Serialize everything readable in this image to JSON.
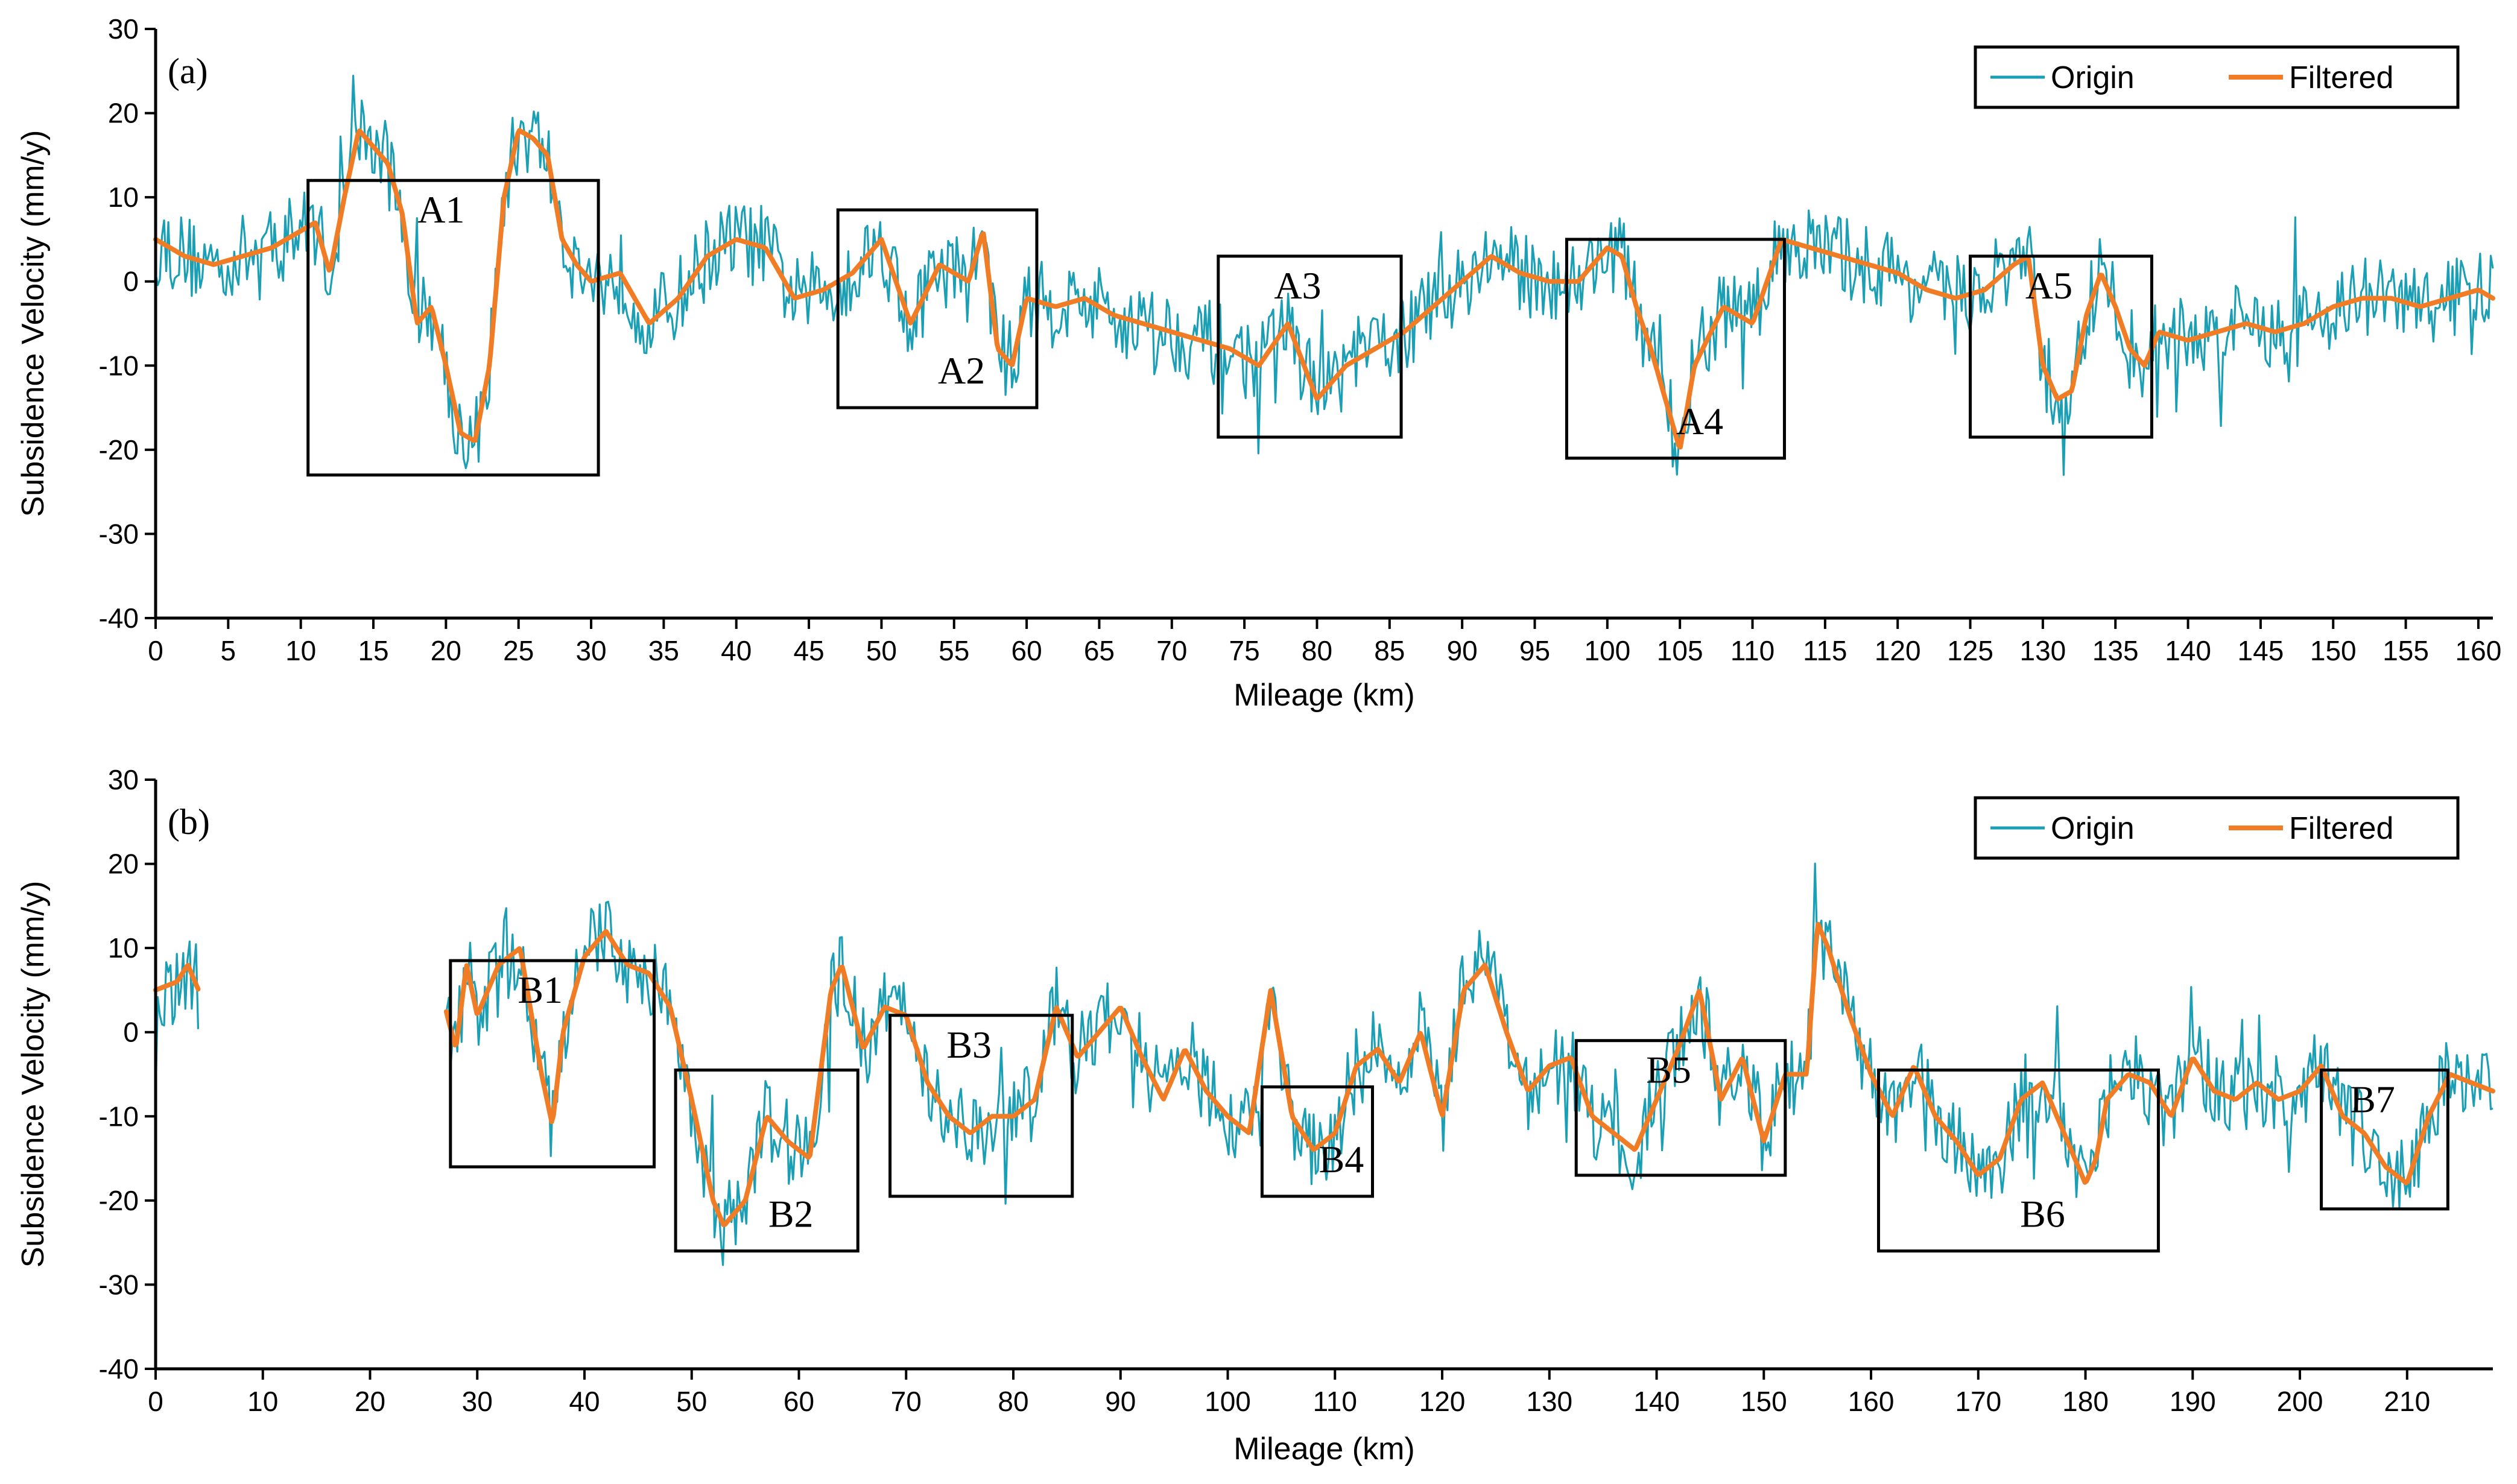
{
  "colors": {
    "origin": "#1a9fb5",
    "filtered": "#f07d25",
    "axis": "#000000"
  },
  "chart_data": [
    {
      "type": "line",
      "panel_label": "(a)",
      "xlabel": "Mileage (km)",
      "ylabel": "Subsidence Velocity (mm/y)",
      "xlim": [
        0,
        161
      ],
      "ylim": [
        -40,
        30
      ],
      "xticks": [
        0,
        5,
        10,
        15,
        20,
        25,
        30,
        35,
        40,
        45,
        50,
        55,
        60,
        65,
        70,
        75,
        80,
        85,
        90,
        95,
        100,
        105,
        110,
        115,
        120,
        125,
        130,
        135,
        140,
        145,
        150,
        155,
        160
      ],
      "yticks": [
        -40,
        -30,
        -20,
        -10,
        0,
        10,
        20,
        30
      ],
      "legend": [
        "Origin",
        "Filtered"
      ],
      "legend_position": "top-right",
      "noise_amplitude": 5,
      "gaps": [],
      "series": [
        {
          "name": "Filtered",
          "x": [
            0,
            2,
            4,
            6,
            8,
            10,
            11,
            12,
            13,
            14,
            15,
            16,
            17,
            18,
            19,
            20,
            21,
            22,
            23,
            24,
            25,
            26,
            27,
            28,
            29,
            30,
            32,
            34,
            36,
            38,
            40,
            42,
            44,
            46,
            48,
            50,
            52,
            54,
            56,
            57,
            58,
            59,
            60,
            62,
            64,
            66,
            68,
            70,
            72,
            74,
            76,
            78,
            80,
            82,
            84,
            86,
            88,
            90,
            92,
            94,
            96,
            98,
            100,
            101,
            102,
            103,
            104,
            105,
            106,
            108,
            110,
            112,
            114,
            116,
            118,
            120,
            122,
            124,
            126,
            128,
            129,
            130,
            131,
            132,
            133,
            134,
            135,
            136,
            137,
            138,
            140,
            142,
            144,
            146,
            148,
            150,
            152,
            154,
            156,
            158,
            160,
            161
          ],
          "y": [
            5,
            3,
            2,
            3,
            4,
            6,
            7,
            1,
            10,
            18,
            16,
            14,
            8,
            -5,
            -3,
            -10,
            -18,
            -19,
            -10,
            10,
            18,
            17,
            15,
            5,
            2,
            0,
            1,
            -5,
            -2,
            3,
            5,
            4,
            -2,
            -1,
            1,
            5,
            -5,
            2,
            0,
            6,
            -8,
            -10,
            -2,
            -3,
            -2,
            -4,
            -5,
            -6,
            -7,
            -8,
            -10,
            -5,
            -14,
            -10,
            -8,
            -6,
            -3,
            0,
            3,
            1,
            0,
            0,
            4,
            3,
            -3,
            -8,
            -14,
            -20,
            -10,
            -3,
            -5,
            5,
            4,
            3,
            2,
            1,
            -1,
            -2,
            -1,
            2,
            3,
            -10,
            -14,
            -13,
            -4,
            1,
            -3,
            -8,
            -10,
            -6,
            -7,
            -6,
            -5,
            -6,
            -5,
            -3,
            -2,
            -2,
            -3,
            -2,
            -1,
            -2
          ]
        }
      ],
      "boxes": [
        {
          "label": "A1",
          "x": [
            10.5,
            30.5
          ],
          "y": [
            -23,
            12
          ]
        },
        {
          "label": "A2",
          "x": [
            47,
            60.7
          ],
          "y": [
            -15,
            8.5
          ]
        },
        {
          "label": "A3",
          "x": [
            73.2,
            85.8
          ],
          "y": [
            -18.5,
            3
          ]
        },
        {
          "label": "A4",
          "x": [
            97.2,
            112.2
          ],
          "y": [
            -21,
            5
          ]
        },
        {
          "label": "A5",
          "x": [
            125,
            137.5
          ],
          "y": [
            -18.5,
            3
          ]
        }
      ]
    },
    {
      "type": "line",
      "panel_label": "(b)",
      "xlabel": "Mileage (km)",
      "ylabel": "Subsidence Velocity (mm/y)",
      "xlim": [
        0,
        218
      ],
      "ylim": [
        -40,
        30
      ],
      "xticks": [
        0,
        10,
        20,
        30,
        40,
        50,
        60,
        70,
        80,
        90,
        100,
        110,
        120,
        130,
        140,
        150,
        160,
        170,
        180,
        190,
        200,
        210
      ],
      "yticks": [
        -40,
        -30,
        -20,
        -10,
        0,
        10,
        20,
        30
      ],
      "legend": [
        "Origin",
        "Filtered"
      ],
      "legend_position": "top-right",
      "noise_amplitude": 5,
      "gaps": [
        [
          4,
          27
        ]
      ],
      "series": [
        {
          "name": "Filtered",
          "x": [
            0,
            2,
            3,
            4,
            27,
            28,
            29,
            30,
            32,
            34,
            36,
            37,
            38,
            40,
            42,
            44,
            46,
            48,
            50,
            52,
            53,
            55,
            57,
            59,
            61,
            63,
            64,
            66,
            68,
            70,
            72,
            74,
            76,
            78,
            80,
            82,
            84,
            86,
            88,
            90,
            92,
            94,
            96,
            98,
            100,
            102,
            104,
            106,
            108,
            110,
            112,
            114,
            116,
            118,
            120,
            122,
            124,
            126,
            128,
            130,
            132,
            134,
            136,
            138,
            140,
            142,
            144,
            146,
            148,
            150,
            152,
            154,
            155,
            156,
            158,
            160,
            162,
            164,
            166,
            168,
            170,
            172,
            174,
            176,
            178,
            180,
            181,
            182,
            184,
            186,
            188,
            190,
            192,
            194,
            196,
            198,
            200,
            202,
            204,
            206,
            208,
            210,
            212,
            214,
            216,
            218
          ],
          "y": [
            5,
            6,
            8,
            5,
            3,
            -2,
            8,
            2,
            8,
            10,
            -5,
            -11,
            0,
            9,
            12,
            8,
            7,
            3,
            -8,
            -20,
            -23,
            -20,
            -10,
            -13,
            -15,
            5,
            8,
            -2,
            3,
            2,
            -6,
            -10,
            -12,
            -10,
            -10,
            -8,
            3,
            -3,
            0,
            3,
            -3,
            -8,
            -2,
            -7,
            -10,
            -12,
            5,
            -10,
            -14,
            -12,
            -4,
            -2,
            -6,
            0,
            -10,
            5,
            8,
            0,
            -7,
            -4,
            -3,
            -10,
            -12,
            -14,
            -8,
            -2,
            5,
            -8,
            -3,
            -13,
            -5,
            -5,
            13,
            10,
            2,
            -5,
            -10,
            -4,
            -10,
            -13,
            -17,
            -15,
            -8,
            -6,
            -12,
            -18,
            -15,
            -8,
            -5,
            -6,
            -10,
            -3,
            -7,
            -8,
            -6,
            -8,
            -7,
            -4,
            -10,
            -12,
            -16,
            -18,
            -10,
            -5,
            -6,
            -7
          ]
        }
      ],
      "boxes": [
        {
          "label": "B1",
          "x": [
            27.5,
            46.5
          ],
          "y": [
            -16,
            8.5
          ]
        },
        {
          "label": "B2",
          "x": [
            48.5,
            65.5
          ],
          "y": [
            -26,
            -4.5
          ]
        },
        {
          "label": "B3",
          "x": [
            68.5,
            85.5
          ],
          "y": [
            -19.5,
            2
          ]
        },
        {
          "label": "B4",
          "x": [
            103.2,
            113.5
          ],
          "y": [
            -19.5,
            -6.5
          ]
        },
        {
          "label": "B5",
          "x": [
            132.5,
            152
          ],
          "y": [
            -17,
            -1
          ]
        },
        {
          "label": "B6",
          "x": [
            160.7,
            186.8
          ],
          "y": [
            -26,
            -4.5
          ]
        },
        {
          "label": "B7",
          "x": [
            202,
            213.8
          ],
          "y": [
            -21,
            -4.5
          ]
        }
      ]
    }
  ]
}
